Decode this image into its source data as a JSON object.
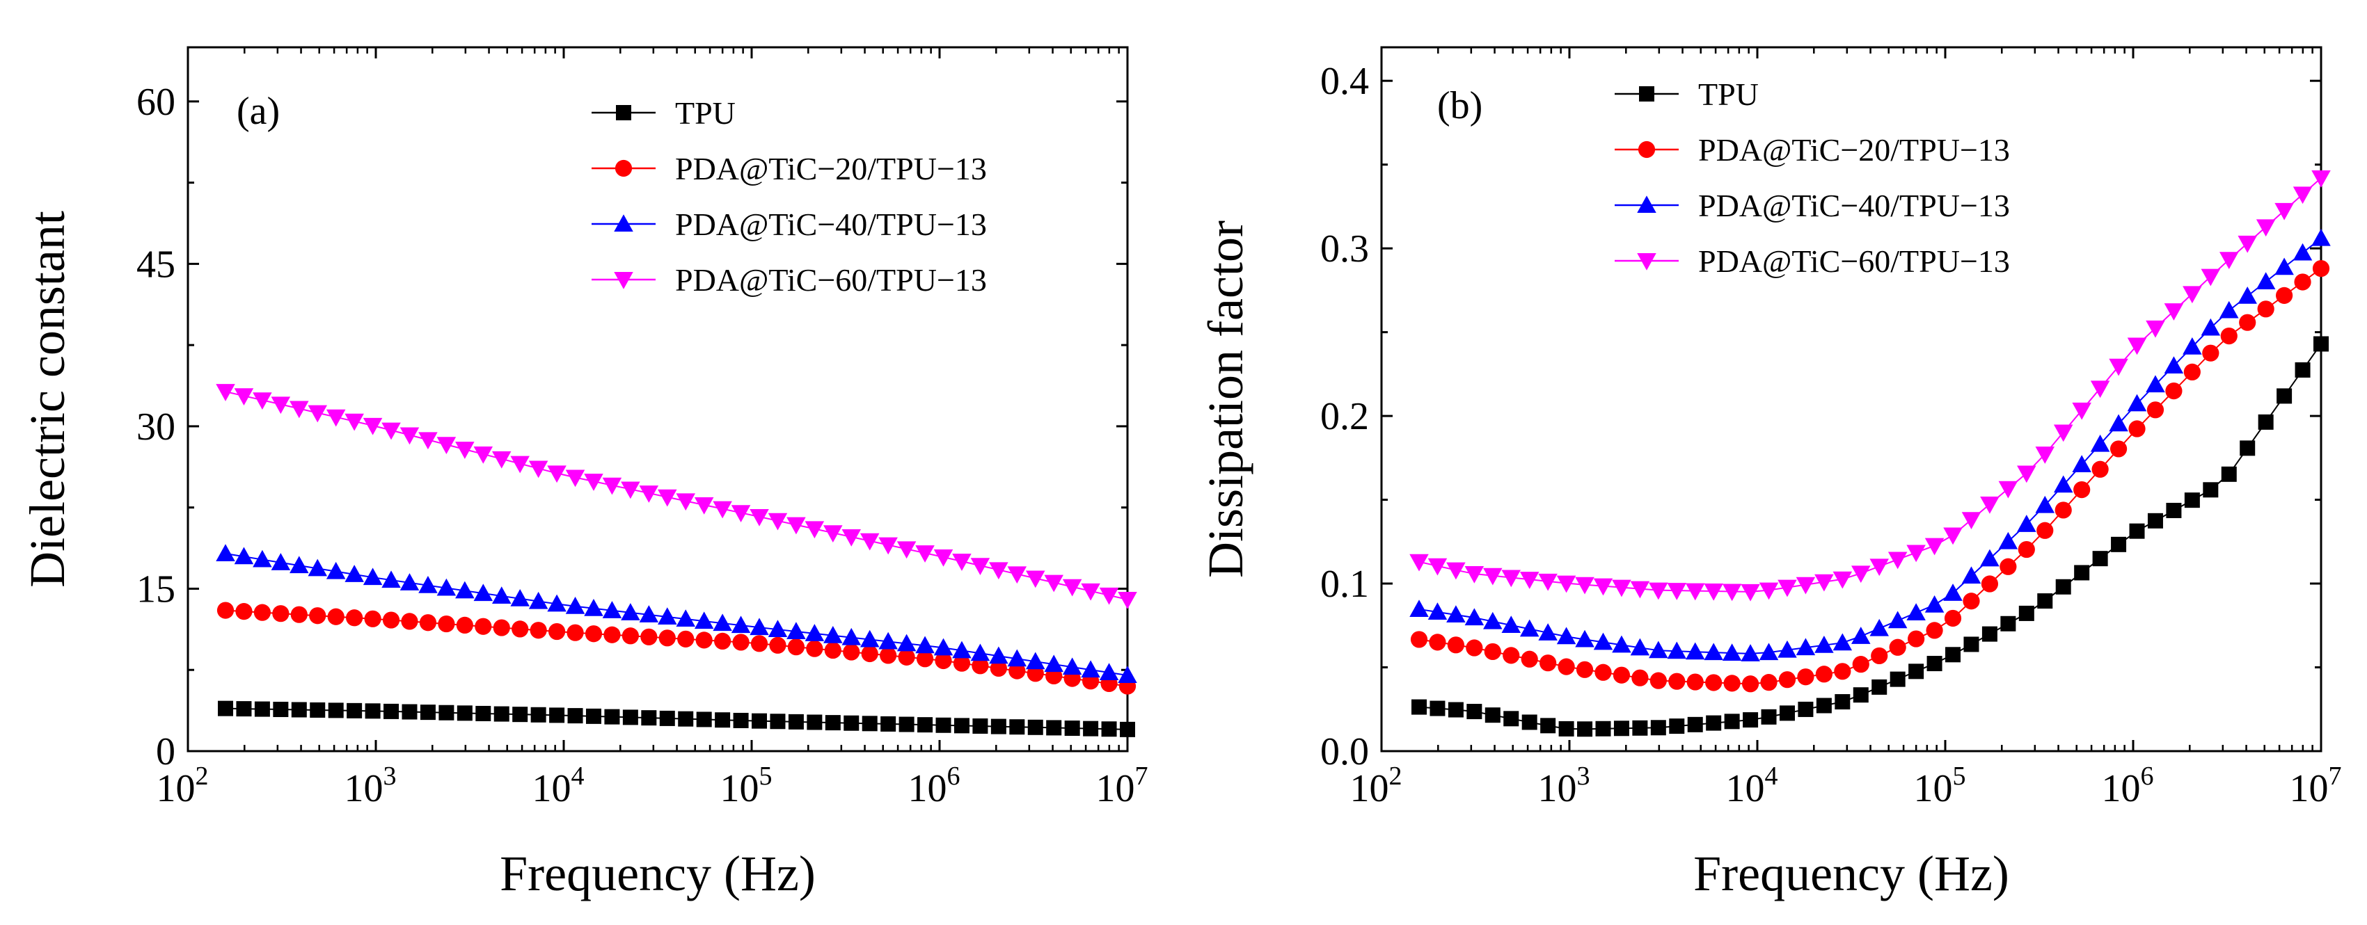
{
  "chart_data": [
    {
      "type": "scatter",
      "panel_label": "(a)",
      "xlabel": "Frequency (Hz)",
      "ylabel": "Dielectric constant",
      "xscale": "log",
      "xlim": [
        100,
        10000000
      ],
      "ylim": [
        0,
        65
      ],
      "x_ticks": [
        {
          "base": "10",
          "exp": "2"
        },
        {
          "base": "10",
          "exp": "3"
        },
        {
          "base": "10",
          "exp": "4"
        },
        {
          "base": "10",
          "exp": "5"
        },
        {
          "base": "10",
          "exp": "6"
        },
        {
          "base": "10",
          "exp": "7"
        }
      ],
      "y_ticks": [
        {
          "value": 0,
          "label": "0"
        },
        {
          "value": 15,
          "label": "15"
        },
        {
          "value": 30,
          "label": "30"
        },
        {
          "value": 45,
          "label": "45"
        },
        {
          "value": 60,
          "label": "60"
        }
      ],
      "grid": false,
      "legend_position": "top-right",
      "n_points": 50,
      "series": [
        {
          "name": "TPU",
          "color": "#000000",
          "marker": "square",
          "knots": [
            [
              100,
              4.0
            ],
            [
              1000,
              3.7
            ],
            [
              10000,
              3.3
            ],
            [
              100000,
              2.8
            ],
            [
              1000000,
              2.4
            ],
            [
              10000000,
              2.0
            ]
          ]
        },
        {
          "name": "PDA@TiC−20/TPU−13",
          "color": "#ff0000",
          "marker": "circle",
          "knots": [
            [
              100,
              13.2
            ],
            [
              1000,
              12.2
            ],
            [
              10000,
              11.0
            ],
            [
              100000,
              10.0
            ],
            [
              1000000,
              8.4
            ],
            [
              10000000,
              6.0
            ]
          ]
        },
        {
          "name": "PDA@TiC−40/TPU−13",
          "color": "#0000ff",
          "marker": "triangle-up",
          "knots": [
            [
              100,
              18.8
            ],
            [
              1000,
              16.0
            ],
            [
              10000,
              13.5
            ],
            [
              100000,
              11.5
            ],
            [
              1000000,
              9.6
            ],
            [
              10000000,
              7.0
            ]
          ]
        },
        {
          "name": "PDA@TiC−60/TPU−13",
          "color": "#ff00ff",
          "marker": "triangle-down",
          "knots": [
            [
              100,
              34.0
            ],
            [
              1000,
              30.0
            ],
            [
              10000,
              25.5
            ],
            [
              100000,
              21.8
            ],
            [
              1000000,
              18.0
            ],
            [
              10000000,
              14.0
            ]
          ]
        }
      ]
    },
    {
      "type": "scatter",
      "panel_label": "(b)",
      "xlabel": "Frequency (Hz)",
      "ylabel": "Dissipation factor",
      "xscale": "log",
      "xlim": [
        100,
        10000000
      ],
      "ylim": [
        0,
        0.42
      ],
      "x_ticks": [
        {
          "base": "10",
          "exp": "2"
        },
        {
          "base": "10",
          "exp": "3"
        },
        {
          "base": "10",
          "exp": "4"
        },
        {
          "base": "10",
          "exp": "5"
        },
        {
          "base": "10",
          "exp": "6"
        },
        {
          "base": "10",
          "exp": "7"
        }
      ],
      "y_ticks": [
        {
          "value": 0,
          "label": "0.0"
        },
        {
          "value": 0.1,
          "label": "0.1"
        },
        {
          "value": 0.2,
          "label": "0.2"
        },
        {
          "value": 0.3,
          "label": "0.3"
        },
        {
          "value": 0.4,
          "label": "0.4"
        }
      ],
      "grid": false,
      "legend_position": "top-right",
      "n_points": 50,
      "series": [
        {
          "name": "TPU",
          "color": "#000000",
          "marker": "square",
          "knots": [
            [
              100,
              0.028
            ],
            [
              300,
              0.024
            ],
            [
              700,
              0.016
            ],
            [
              1000,
              0.013
            ],
            [
              3000,
              0.014
            ],
            [
              10000,
              0.019
            ],
            [
              30000,
              0.03
            ],
            [
              100000,
              0.055
            ],
            [
              300000,
              0.085
            ],
            [
              1000000,
              0.13
            ],
            [
              3000000,
              0.16
            ],
            [
              10000000,
              0.243
            ]
          ]
        },
        {
          "name": "PDA@TiC−20/TPU−13",
          "color": "#ff0000",
          "marker": "circle",
          "knots": [
            [
              100,
              0.07
            ],
            [
              300,
              0.062
            ],
            [
              1000,
              0.05
            ],
            [
              3000,
              0.042
            ],
            [
              10000,
              0.04
            ],
            [
              30000,
              0.048
            ],
            [
              100000,
              0.075
            ],
            [
              300000,
              0.125
            ],
            [
              1000000,
              0.19
            ],
            [
              3000000,
              0.245
            ],
            [
              10000000,
              0.288
            ]
          ]
        },
        {
          "name": "PDA@TiC−40/TPU−13",
          "color": "#0000ff",
          "marker": "triangle-up",
          "knots": [
            [
              100,
              0.088
            ],
            [
              300,
              0.08
            ],
            [
              1000,
              0.068
            ],
            [
              3000,
              0.06
            ],
            [
              10000,
              0.058
            ],
            [
              30000,
              0.065
            ],
            [
              100000,
              0.09
            ],
            [
              300000,
              0.14
            ],
            [
              1000000,
              0.205
            ],
            [
              3000000,
              0.26
            ],
            [
              10000000,
              0.306
            ]
          ]
        },
        {
          "name": "PDA@TiC−60/TPU−13",
          "color": "#ff00ff",
          "marker": "triangle-down",
          "knots": [
            [
              100,
              0.118
            ],
            [
              300,
              0.106
            ],
            [
              1000,
              0.1
            ],
            [
              3000,
              0.096
            ],
            [
              10000,
              0.095
            ],
            [
              30000,
              0.103
            ],
            [
              100000,
              0.125
            ],
            [
              300000,
              0.17
            ],
            [
              1000000,
              0.24
            ],
            [
              3000000,
              0.29
            ],
            [
              10000000,
              0.342
            ]
          ]
        }
      ]
    }
  ]
}
